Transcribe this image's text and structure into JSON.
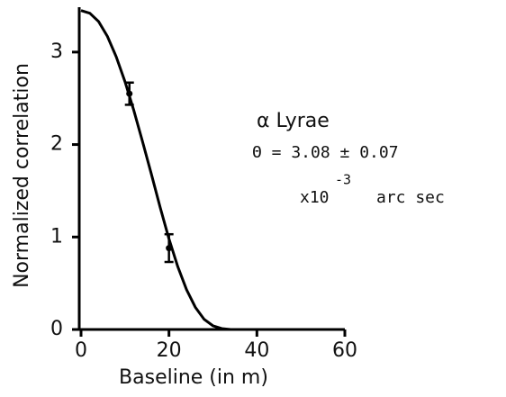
{
  "chart_data": {
    "type": "line",
    "xlabel": "Baseline (in m)",
    "ylabel": "Normalized correlation",
    "xlim": [
      0,
      60
    ],
    "xticks": [
      0,
      20,
      40,
      60
    ],
    "ylim": [
      0,
      3.5
    ],
    "yticks": [
      0,
      1,
      2,
      3
    ],
    "series": [
      {
        "kind": "line",
        "color": "#000000",
        "x": [
          0,
          2,
          4,
          6,
          8,
          10,
          12,
          14,
          16,
          18,
          20,
          22,
          24,
          26,
          28,
          30,
          32,
          34
        ],
        "values": [
          3.45,
          3.42,
          3.33,
          3.17,
          2.95,
          2.68,
          2.37,
          2.03,
          1.68,
          1.32,
          0.98,
          0.68,
          0.43,
          0.24,
          0.11,
          0.04,
          0.01,
          0
        ]
      },
      {
        "kind": "errorbar",
        "color": "#000000",
        "x": [
          11,
          20
        ],
        "values": [
          2.55,
          0.88
        ],
        "errors": [
          0.12,
          0.15
        ]
      }
    ],
    "annotations": [
      "α Lyrae",
      "Θ = 3.08 ± 0.07",
      "x10",
      "-3",
      "arc sec"
    ]
  }
}
